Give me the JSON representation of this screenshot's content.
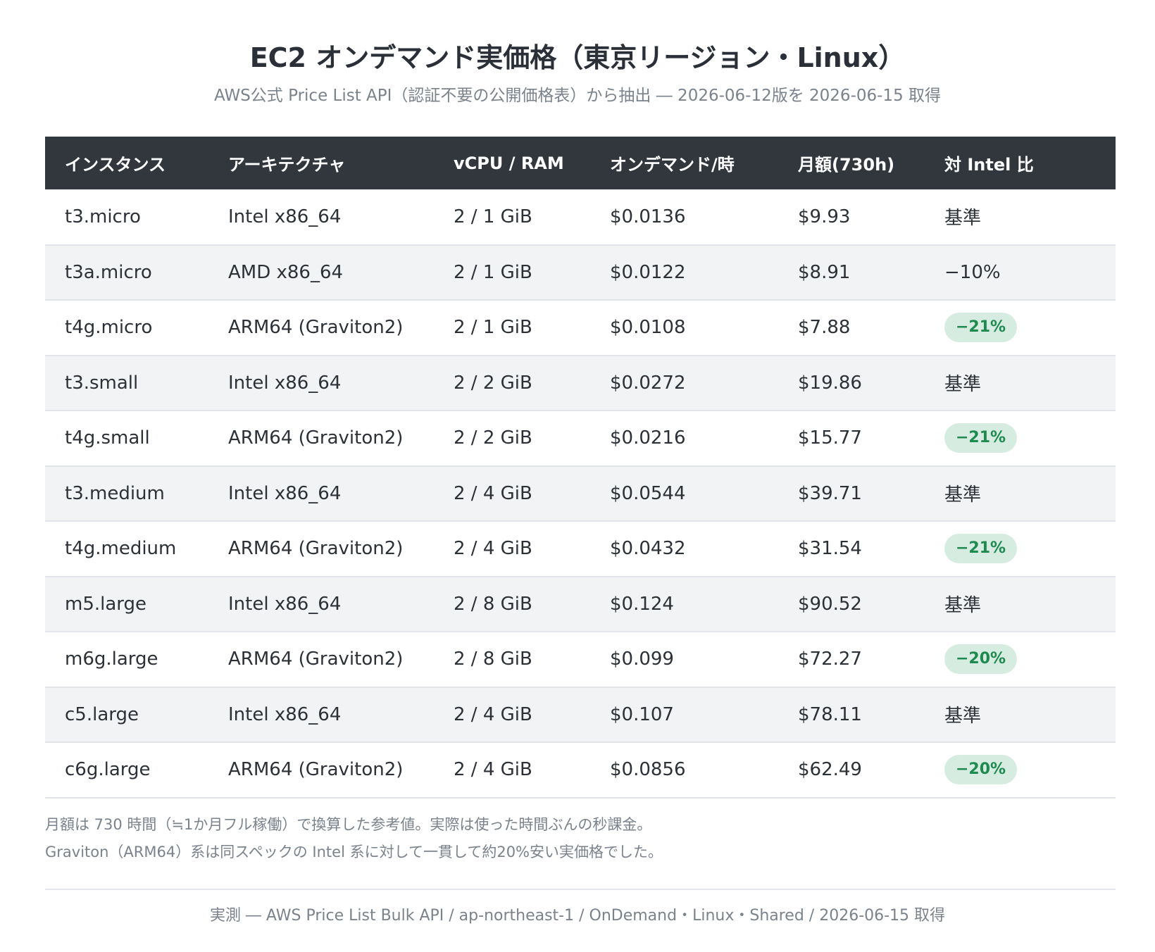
{
  "header": {
    "title": "EC2 オンデマンド実価格（東京リージョン・Linux）",
    "subtitle": "AWS公式 Price List API（認証不要の公開価格表）から抽出 ― 2026-06-12版を 2026-06-15 取得"
  },
  "table": {
    "columns": [
      "インスタンス",
      "アーキテクチャ",
      "vCPU / RAM",
      "オンデマンド/時",
      "月額(730h)",
      "対 Intel 比"
    ],
    "rows": [
      {
        "instance": "t3.micro",
        "arch": "Intel x86_64",
        "spec": "2 / 1 GiB",
        "hourly": "$0.0136",
        "monthly": "$9.93",
        "ratio": "基準",
        "highlight": false
      },
      {
        "instance": "t3a.micro",
        "arch": "AMD x86_64",
        "spec": "2 / 1 GiB",
        "hourly": "$0.0122",
        "monthly": "$8.91",
        "ratio": "−10%",
        "highlight": false
      },
      {
        "instance": "t4g.micro",
        "arch": "ARM64 (Graviton2)",
        "spec": "2 / 1 GiB",
        "hourly": "$0.0108",
        "monthly": "$7.88",
        "ratio": "−21%",
        "highlight": true
      },
      {
        "instance": "t3.small",
        "arch": "Intel x86_64",
        "spec": "2 / 2 GiB",
        "hourly": "$0.0272",
        "monthly": "$19.86",
        "ratio": "基準",
        "highlight": false
      },
      {
        "instance": "t4g.small",
        "arch": "ARM64 (Graviton2)",
        "spec": "2 / 2 GiB",
        "hourly": "$0.0216",
        "monthly": "$15.77",
        "ratio": "−21%",
        "highlight": true
      },
      {
        "instance": "t3.medium",
        "arch": "Intel x86_64",
        "spec": "2 / 4 GiB",
        "hourly": "$0.0544",
        "monthly": "$39.71",
        "ratio": "基準",
        "highlight": false
      },
      {
        "instance": "t4g.medium",
        "arch": "ARM64 (Graviton2)",
        "spec": "2 / 4 GiB",
        "hourly": "$0.0432",
        "monthly": "$31.54",
        "ratio": "−21%",
        "highlight": true
      },
      {
        "instance": "m5.large",
        "arch": "Intel x86_64",
        "spec": "2 / 8 GiB",
        "hourly": "$0.124",
        "monthly": "$90.52",
        "ratio": "基準",
        "highlight": false
      },
      {
        "instance": "m6g.large",
        "arch": "ARM64 (Graviton2)",
        "spec": "2 / 8 GiB",
        "hourly": "$0.099",
        "monthly": "$72.27",
        "ratio": "−20%",
        "highlight": true
      },
      {
        "instance": "c5.large",
        "arch": "Intel x86_64",
        "spec": "2 / 4 GiB",
        "hourly": "$0.107",
        "monthly": "$78.11",
        "ratio": "基準",
        "highlight": false
      },
      {
        "instance": "c6g.large",
        "arch": "ARM64 (Graviton2)",
        "spec": "2 / 4 GiB",
        "hourly": "$0.0856",
        "monthly": "$62.49",
        "ratio": "−20%",
        "highlight": true
      }
    ]
  },
  "notes": [
    "月額は 730 時間（≒1か月フル稼働）で換算した参考値。実際は使った時間ぶんの秒課金。",
    "Graviton（ARM64）系は同スペックの Intel 系に対して一貫して約20%安い実価格でした。"
  ],
  "footer": "実測 ― AWS Price List Bulk API / ap-northeast-1 / OnDemand・Linux・Shared / 2026-06-15 取得",
  "colors": {
    "header_bg": "#32363d",
    "stripe_bg": "#f2f3f5",
    "pill_bg": "#d6ece1",
    "pill_text": "#1e8a50"
  }
}
